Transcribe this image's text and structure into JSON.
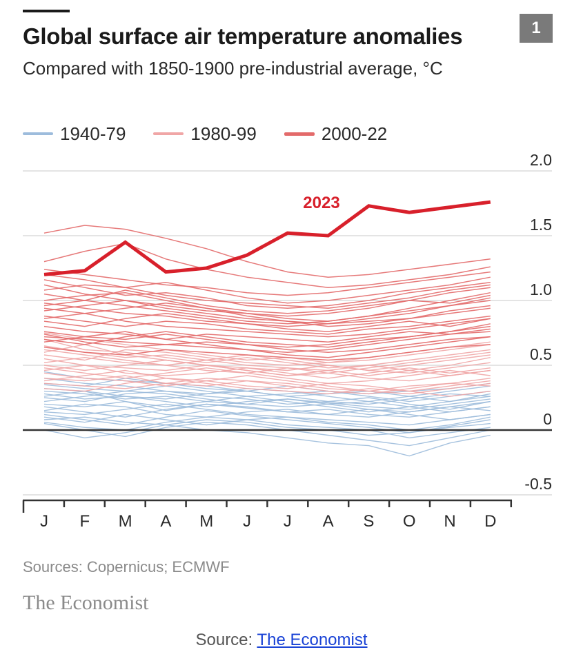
{
  "header": {
    "title": "Global surface air temperature anomalies",
    "subtitle": "Compared with 1850-1900 pre-industrial average, °C",
    "chart_number": "1"
  },
  "footer": {
    "sources": "Sources: Copernicus; ECMWF",
    "brand": "The Economist",
    "caption_prefix": "Source: ",
    "caption_link": "The Economist"
  },
  "colors": {
    "era_1940_79": "#9dbcdc",
    "era_1980_99": "#f0a6a6",
    "era_2000_22": "#e36a6a",
    "highlight_2023": "#d8202b",
    "grid": "#dcdcdc",
    "axis": "#333333"
  },
  "chart_data": {
    "type": "line",
    "title": "Global surface air temperature anomalies",
    "subtitle": "Compared with 1850-1900 pre-industrial average, °C",
    "x": [
      "J",
      "F",
      "M",
      "A",
      "M",
      "J",
      "J",
      "A",
      "S",
      "O",
      "N",
      "D"
    ],
    "y_ticks": [
      "2.0",
      "1.5",
      "1.0",
      "0.5",
      "0",
      "-0.5"
    ],
    "y_tick_values": [
      2.0,
      1.5,
      1.0,
      0.5,
      0,
      -0.5
    ],
    "ylim": [
      -0.5,
      2.0
    ],
    "grid": true,
    "y_axis_side": "right",
    "legend": {
      "placement": "top-left",
      "entries": [
        {
          "label": "1940-79",
          "color_key": "era_1940_79"
        },
        {
          "label": "1980-99",
          "color_key": "era_1980_99"
        },
        {
          "label": "2000-22",
          "color_key": "era_2000_22"
        }
      ]
    },
    "highlight": {
      "name": "2023",
      "values": [
        1.2,
        1.23,
        1.45,
        1.22,
        1.25,
        1.35,
        1.52,
        1.5,
        1.73,
        1.68,
        1.72,
        1.76
      ]
    },
    "series_groups": [
      {
        "group": "1940-79",
        "color_key": "era_1940_79",
        "series": [
          [
            0.2,
            0.18,
            0.22,
            0.15,
            0.2,
            0.17,
            0.14,
            0.16,
            0.12,
            0.1,
            0.14,
            0.18
          ],
          [
            0.12,
            0.08,
            0.04,
            0.1,
            0.15,
            0.11,
            0.08,
            0.05,
            0.02,
            -0.02,
            0.03,
            0.08
          ],
          [
            0.3,
            0.28,
            0.24,
            0.26,
            0.22,
            0.2,
            0.24,
            0.21,
            0.18,
            0.16,
            0.2,
            0.24
          ],
          [
            0.05,
            0.0,
            -0.05,
            0.02,
            0.06,
            0.04,
            0.0,
            -0.04,
            -0.08,
            -0.12,
            -0.06,
            0.0
          ],
          [
            0.25,
            0.22,
            0.28,
            0.3,
            0.26,
            0.24,
            0.2,
            0.22,
            0.25,
            0.2,
            0.16,
            0.22
          ],
          [
            0.15,
            0.2,
            0.18,
            0.12,
            0.1,
            0.14,
            0.16,
            0.12,
            0.1,
            0.14,
            0.18,
            0.15
          ],
          [
            0.35,
            0.32,
            0.3,
            0.34,
            0.3,
            0.26,
            0.28,
            0.3,
            0.26,
            0.22,
            0.26,
            0.3
          ],
          [
            0.08,
            0.1,
            0.06,
            0.04,
            0.08,
            0.06,
            0.02,
            0.0,
            -0.04,
            -0.02,
            0.02,
            0.05
          ],
          [
            0.4,
            0.36,
            0.34,
            0.3,
            0.28,
            0.3,
            0.26,
            0.22,
            0.2,
            0.24,
            0.28,
            0.26
          ],
          [
            0.18,
            0.14,
            0.1,
            0.16,
            0.2,
            0.18,
            0.14,
            0.12,
            0.16,
            0.12,
            0.08,
            0.12
          ],
          [
            0.0,
            -0.06,
            -0.02,
            0.04,
            0.0,
            -0.02,
            -0.06,
            -0.1,
            -0.12,
            -0.2,
            -0.1,
            -0.04
          ],
          [
            0.28,
            0.24,
            0.26,
            0.22,
            0.18,
            0.22,
            0.24,
            0.2,
            0.16,
            0.14,
            0.18,
            0.22
          ],
          [
            0.22,
            0.26,
            0.3,
            0.28,
            0.24,
            0.2,
            0.18,
            0.2,
            0.22,
            0.18,
            0.22,
            0.26
          ],
          [
            0.1,
            0.06,
            0.12,
            0.08,
            0.04,
            0.08,
            0.1,
            0.06,
            0.04,
            0.0,
            0.04,
            0.1
          ],
          [
            0.32,
            0.3,
            0.26,
            0.24,
            0.28,
            0.32,
            0.3,
            0.26,
            0.22,
            0.26,
            0.3,
            0.34
          ],
          [
            0.14,
            0.12,
            0.16,
            0.2,
            0.16,
            0.12,
            0.1,
            0.08,
            0.06,
            0.04,
            0.08,
            0.12
          ],
          [
            0.45,
            0.4,
            0.38,
            0.36,
            0.32,
            0.3,
            0.34,
            0.3,
            0.28,
            0.3,
            0.32,
            0.36
          ],
          [
            0.06,
            0.02,
            0.0,
            0.06,
            0.1,
            0.08,
            0.04,
            0.02,
            0.0,
            -0.06,
            -0.02,
            0.02
          ],
          [
            0.26,
            0.3,
            0.22,
            0.18,
            0.22,
            0.26,
            0.22,
            0.18,
            0.14,
            0.18,
            0.14,
            0.18
          ],
          [
            0.36,
            0.34,
            0.4,
            0.36,
            0.34,
            0.3,
            0.26,
            0.28,
            0.3,
            0.26,
            0.22,
            0.28
          ]
        ]
      },
      {
        "group": "1980-99",
        "color_key": "era_1980_99",
        "series": [
          [
            0.4,
            0.38,
            0.42,
            0.36,
            0.34,
            0.38,
            0.36,
            0.32,
            0.3,
            0.34,
            0.36,
            0.4
          ],
          [
            0.55,
            0.5,
            0.48,
            0.46,
            0.5,
            0.46,
            0.42,
            0.44,
            0.4,
            0.38,
            0.42,
            0.46
          ],
          [
            0.32,
            0.3,
            0.36,
            0.4,
            0.36,
            0.32,
            0.3,
            0.28,
            0.32,
            0.3,
            0.26,
            0.3
          ],
          [
            0.6,
            0.66,
            0.58,
            0.54,
            0.5,
            0.48,
            0.46,
            0.5,
            0.46,
            0.44,
            0.48,
            0.52
          ],
          [
            0.48,
            0.44,
            0.4,
            0.44,
            0.48,
            0.44,
            0.4,
            0.36,
            0.38,
            0.42,
            0.46,
            0.42
          ],
          [
            0.7,
            0.62,
            0.6,
            0.56,
            0.52,
            0.56,
            0.52,
            0.48,
            0.5,
            0.54,
            0.58,
            0.62
          ],
          [
            0.38,
            0.42,
            0.46,
            0.4,
            0.38,
            0.34,
            0.32,
            0.36,
            0.34,
            0.3,
            0.34,
            0.38
          ],
          [
            0.52,
            0.56,
            0.52,
            0.5,
            0.46,
            0.44,
            0.48,
            0.46,
            0.42,
            0.46,
            0.5,
            0.56
          ],
          [
            0.65,
            0.6,
            0.56,
            0.58,
            0.54,
            0.5,
            0.48,
            0.44,
            0.48,
            0.52,
            0.56,
            0.6
          ],
          [
            0.44,
            0.4,
            0.38,
            0.34,
            0.38,
            0.42,
            0.38,
            0.34,
            0.3,
            0.28,
            0.32,
            0.36
          ],
          [
            0.58,
            0.54,
            0.62,
            0.6,
            0.56,
            0.52,
            0.5,
            0.52,
            0.56,
            0.6,
            0.64,
            0.68
          ],
          [
            0.36,
            0.34,
            0.32,
            0.36,
            0.4,
            0.38,
            0.34,
            0.3,
            0.28,
            0.32,
            0.36,
            0.34
          ],
          [
            0.75,
            0.7,
            0.66,
            0.62,
            0.58,
            0.54,
            0.56,
            0.52,
            0.54,
            0.58,
            0.62,
            0.66
          ],
          [
            0.46,
            0.5,
            0.44,
            0.42,
            0.44,
            0.48,
            0.44,
            0.4,
            0.44,
            0.48,
            0.44,
            0.48
          ],
          [
            0.62,
            0.58,
            0.54,
            0.5,
            0.54,
            0.58,
            0.54,
            0.5,
            0.46,
            0.5,
            0.54,
            0.58
          ],
          [
            0.5,
            0.46,
            0.5,
            0.54,
            0.5,
            0.46,
            0.42,
            0.46,
            0.5,
            0.46,
            0.42,
            0.46
          ]
        ]
      },
      {
        "group": "2000-22",
        "color_key": "era_2000_22",
        "series": [
          [
            1.52,
            1.58,
            1.55,
            1.48,
            1.4,
            1.3,
            1.22,
            1.18,
            1.2,
            1.24,
            1.28,
            1.32
          ],
          [
            1.3,
            1.38,
            1.44,
            1.32,
            1.24,
            1.18,
            1.14,
            1.1,
            1.12,
            1.16,
            1.2,
            1.26
          ],
          [
            1.2,
            1.16,
            1.1,
            1.14,
            1.08,
            1.02,
            0.98,
            1.0,
            1.04,
            1.08,
            1.12,
            1.18
          ],
          [
            1.12,
            1.05,
            1.0,
            0.96,
            0.92,
            0.9,
            0.86,
            0.84,
            0.88,
            0.92,
            0.96,
            1.0
          ],
          [
            1.05,
            1.0,
            1.08,
            1.02,
            0.96,
            0.92,
            0.9,
            0.92,
            0.96,
            1.0,
            0.98,
            1.04
          ],
          [
            0.98,
            0.94,
            0.9,
            0.88,
            0.84,
            0.82,
            0.8,
            0.82,
            0.84,
            0.86,
            0.9,
            0.94
          ],
          [
            0.92,
            0.96,
            1.0,
            0.94,
            0.9,
            0.86,
            0.84,
            0.8,
            0.82,
            0.86,
            0.92,
            0.96
          ],
          [
            0.88,
            0.84,
            0.8,
            0.84,
            0.82,
            0.78,
            0.76,
            0.74,
            0.78,
            0.8,
            0.84,
            0.88
          ],
          [
            0.84,
            0.8,
            0.86,
            0.9,
            0.86,
            0.82,
            0.78,
            0.76,
            0.8,
            0.84,
            0.8,
            0.86
          ],
          [
            0.8,
            0.76,
            0.74,
            0.7,
            0.74,
            0.72,
            0.7,
            0.68,
            0.72,
            0.76,
            0.74,
            0.78
          ],
          [
            0.76,
            0.72,
            0.7,
            0.74,
            0.7,
            0.66,
            0.64,
            0.66,
            0.7,
            0.72,
            0.76,
            0.8
          ],
          [
            0.72,
            0.7,
            0.68,
            0.66,
            0.64,
            0.62,
            0.6,
            0.62,
            0.66,
            0.7,
            0.74,
            0.76
          ],
          [
            0.68,
            0.72,
            0.76,
            0.7,
            0.66,
            0.62,
            0.58,
            0.56,
            0.6,
            0.64,
            0.68,
            0.72
          ],
          [
            0.64,
            0.6,
            0.58,
            0.62,
            0.6,
            0.58,
            0.56,
            0.54,
            0.56,
            0.6,
            0.64,
            0.66
          ],
          [
            1.0,
            1.04,
            1.06,
            1.0,
            0.94,
            0.9,
            0.88,
            0.9,
            0.94,
            1.0,
            1.06,
            1.1
          ],
          [
            0.94,
            0.9,
            0.94,
            0.98,
            0.94,
            0.88,
            0.84,
            0.82,
            0.86,
            0.9,
            0.96,
            1.02
          ],
          [
            0.86,
            0.9,
            0.84,
            0.8,
            0.78,
            0.76,
            0.74,
            0.72,
            0.74,
            0.78,
            0.82,
            0.86
          ],
          [
            1.16,
            1.1,
            1.04,
            1.06,
            1.02,
            0.96,
            0.94,
            0.96,
            1.0,
            1.06,
            1.1,
            1.14
          ],
          [
            0.74,
            0.68,
            0.64,
            0.66,
            0.68,
            0.66,
            0.62,
            0.6,
            0.62,
            0.66,
            0.7,
            0.72
          ],
          [
            1.08,
            1.12,
            1.1,
            1.04,
            1.0,
            0.98,
            0.96,
            0.94,
            0.98,
            1.02,
            1.08,
            1.12
          ],
          [
            1.24,
            1.2,
            1.16,
            1.12,
            1.1,
            1.06,
            1.04,
            1.06,
            1.1,
            1.14,
            1.18,
            1.22
          ],
          [
            0.96,
            1.0,
            0.96,
            0.92,
            0.88,
            0.84,
            0.82,
            0.84,
            0.88,
            0.94,
            1.0,
            1.06
          ],
          [
            0.7,
            0.66,
            0.72,
            0.76,
            0.72,
            0.68,
            0.66,
            0.64,
            0.68,
            0.72,
            0.76,
            0.82
          ]
        ]
      }
    ]
  }
}
